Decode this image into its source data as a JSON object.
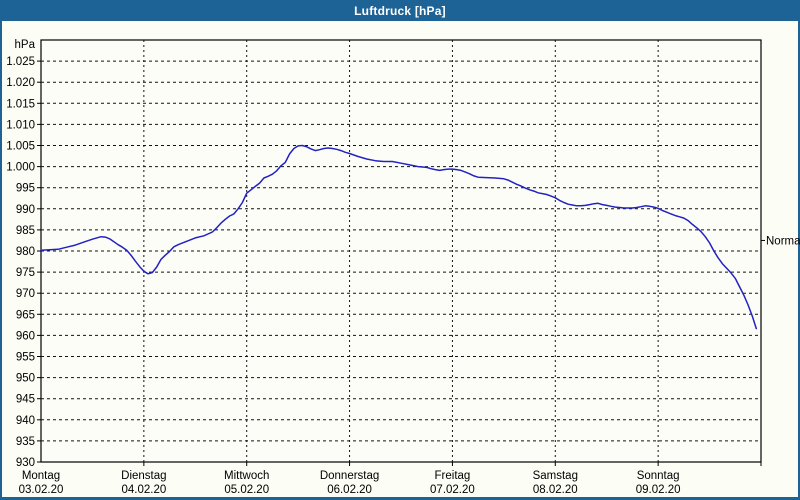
{
  "window": {
    "title": "Luftdruck [hPa]"
  },
  "colors": {
    "titlebar_bg": "#1e6396",
    "frame": "#1e6396",
    "title_text": "#ffffff",
    "content_bg": "#fcfdf5",
    "plot_bg": "#fdfdf8",
    "axis": "#000000",
    "grid": "#111111",
    "text": "#000000",
    "line": "#2222c2"
  },
  "chart_data": {
    "type": "line",
    "title": "Luftdruck [hPa]",
    "ylabel": "hPa",
    "xlabel": "",
    "grid": "dashed horizontal every 5 hPa, dashed vertical at day boundaries",
    "legend_position": "none",
    "ylim": [
      930,
      1030
    ],
    "y_axis": {
      "unit_label": "hPa",
      "tick_values": [
        1025,
        1020,
        1015,
        1010,
        1005,
        1000,
        995,
        990,
        985,
        980,
        975,
        970,
        965,
        960,
        955,
        950,
        945,
        940,
        935,
        930
      ],
      "tick_labels": [
        "1.025",
        "1.020",
        "1.015",
        "1.010",
        "1.005",
        "1.000",
        "995",
        "990",
        "985",
        "980",
        "975",
        "970",
        "965",
        "960",
        "955",
        "950",
        "945",
        "940",
        "935",
        "930"
      ]
    },
    "x_axis": {
      "hours_total": 168,
      "days": [
        {
          "weekday": "Montag",
          "date": "03.02.20"
        },
        {
          "weekday": "Dienstag",
          "date": "04.02.20"
        },
        {
          "weekday": "Mittwoch",
          "date": "05.02.20"
        },
        {
          "weekday": "Donnerstag",
          "date": "06.02.20"
        },
        {
          "weekday": "Freitag",
          "date": "07.02.20"
        },
        {
          "weekday": "Samstag",
          "date": "08.02.20"
        },
        {
          "weekday": "Sonntag",
          "date": "09.02.20"
        }
      ]
    },
    "annotations": [
      {
        "label": "Normal",
        "y_hpa": 982.5,
        "side": "right"
      }
    ],
    "series": [
      {
        "name": "Luftdruck",
        "color": "#2222c2",
        "points_hours_hpa": [
          [
            0,
            980.2
          ],
          [
            2,
            980.3
          ],
          [
            4,
            980.4
          ],
          [
            6,
            980.9
          ],
          [
            8,
            981.4
          ],
          [
            10,
            982.1
          ],
          [
            12,
            982.8
          ],
          [
            14,
            983.4
          ],
          [
            15,
            983.3
          ],
          [
            16,
            982.9
          ],
          [
            17,
            982.2
          ],
          [
            18,
            981.5
          ],
          [
            19,
            980.9
          ],
          [
            20,
            980.2
          ],
          [
            21,
            979.0
          ],
          [
            22,
            977.6
          ],
          [
            23,
            976.3
          ],
          [
            24,
            975.2
          ],
          [
            25,
            974.6
          ],
          [
            26,
            974.9
          ],
          [
            27,
            976.2
          ],
          [
            28,
            978.0
          ],
          [
            29,
            979.0
          ],
          [
            30,
            979.9
          ],
          [
            31,
            981.0
          ],
          [
            32,
            981.5
          ],
          [
            34,
            982.3
          ],
          [
            36,
            983.1
          ],
          [
            38,
            983.6
          ],
          [
            40,
            984.5
          ],
          [
            41,
            985.5
          ],
          [
            42,
            986.6
          ],
          [
            43,
            987.5
          ],
          [
            44,
            988.3
          ],
          [
            45,
            988.8
          ],
          [
            46,
            990.0
          ],
          [
            47,
            991.5
          ],
          [
            48,
            993.7
          ],
          [
            49,
            994.5
          ],
          [
            50,
            995.3
          ],
          [
            51,
            996.1
          ],
          [
            52,
            997.3
          ],
          [
            53,
            997.7
          ],
          [
            54,
            998.2
          ],
          [
            55,
            999.0
          ],
          [
            56,
            1000.2
          ],
          [
            57,
            1001.0
          ],
          [
            58,
            1003.0
          ],
          [
            59,
            1004.3
          ],
          [
            60,
            1004.9
          ],
          [
            61,
            1005.0
          ],
          [
            62,
            1004.7
          ],
          [
            63,
            1004.2
          ],
          [
            64,
            1003.8
          ],
          [
            65,
            1004.0
          ],
          [
            66,
            1004.3
          ],
          [
            67,
            1004.4
          ],
          [
            68,
            1004.3
          ],
          [
            69,
            1004.1
          ],
          [
            70,
            1003.8
          ],
          [
            71,
            1003.4
          ],
          [
            72,
            1003.1
          ],
          [
            74,
            1002.4
          ],
          [
            76,
            1001.8
          ],
          [
            78,
            1001.4
          ],
          [
            80,
            1001.2
          ],
          [
            82,
            1001.2
          ],
          [
            84,
            1000.8
          ],
          [
            86,
            1000.4
          ],
          [
            88,
            1000.0
          ],
          [
            90,
            999.8
          ],
          [
            91,
            999.5
          ],
          [
            92,
            999.3
          ],
          [
            93,
            999.1
          ],
          [
            94,
            999.3
          ],
          [
            95,
            999.4
          ],
          [
            96,
            999.4
          ],
          [
            97,
            999.3
          ],
          [
            98,
            999.1
          ],
          [
            99,
            998.7
          ],
          [
            100,
            998.3
          ],
          [
            101,
            997.8
          ],
          [
            102,
            997.5
          ],
          [
            104,
            997.4
          ],
          [
            106,
            997.3
          ],
          [
            108,
            997.1
          ],
          [
            109,
            996.8
          ],
          [
            110,
            996.3
          ],
          [
            111,
            995.8
          ],
          [
            112,
            995.4
          ],
          [
            113,
            994.9
          ],
          [
            114,
            994.5
          ],
          [
            115,
            994.2
          ],
          [
            116,
            993.8
          ],
          [
            117,
            993.6
          ],
          [
            118,
            993.4
          ],
          [
            119,
            993.0
          ],
          [
            120,
            992.6
          ],
          [
            121,
            992.0
          ],
          [
            122,
            991.5
          ],
          [
            123,
            991.1
          ],
          [
            124,
            990.9
          ],
          [
            125,
            990.7
          ],
          [
            126,
            990.7
          ],
          [
            127,
            990.8
          ],
          [
            128,
            991.0
          ],
          [
            129,
            991.2
          ],
          [
            130,
            991.3
          ],
          [
            131,
            991.0
          ],
          [
            132,
            990.8
          ],
          [
            133,
            990.6
          ],
          [
            134,
            990.4
          ],
          [
            135,
            990.3
          ],
          [
            136,
            990.2
          ],
          [
            137,
            990.2
          ],
          [
            138,
            990.2
          ],
          [
            139,
            990.3
          ],
          [
            140,
            990.5
          ],
          [
            141,
            990.7
          ],
          [
            142,
            990.6
          ],
          [
            143,
            990.4
          ],
          [
            144,
            990.1
          ],
          [
            145,
            989.6
          ],
          [
            146,
            989.2
          ],
          [
            147,
            988.8
          ],
          [
            148,
            988.4
          ],
          [
            149,
            988.1
          ],
          [
            150,
            987.8
          ],
          [
            151,
            987.2
          ],
          [
            152,
            986.3
          ],
          [
            153,
            985.5
          ],
          [
            154,
            984.6
          ],
          [
            155,
            983.4
          ],
          [
            156,
            981.9
          ],
          [
            157,
            980.0
          ],
          [
            158,
            978.4
          ],
          [
            159,
            977.0
          ],
          [
            160,
            975.9
          ],
          [
            161,
            974.8
          ],
          [
            162,
            973.5
          ],
          [
            163,
            971.5
          ],
          [
            164,
            969.5
          ],
          [
            165,
            967.2
          ],
          [
            166,
            964.5
          ],
          [
            166.9,
            961.6
          ]
        ]
      }
    ]
  }
}
